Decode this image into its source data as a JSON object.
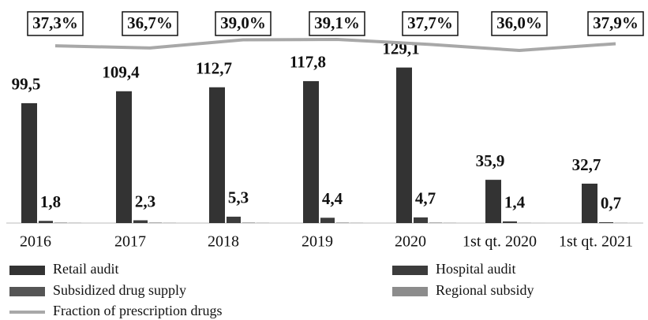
{
  "chart_data": {
    "type": "bar",
    "categories": [
      "2016",
      "2017",
      "2018",
      "2019",
      "2020",
      "1st qt. 2020",
      "1st qt. 2021"
    ],
    "ylim": [
      0,
      140
    ],
    "y2lim": [
      30,
      45
    ],
    "series": [
      {
        "name": "Retail audit",
        "color": "#333333",
        "values": [
          99.5,
          109.4,
          112.7,
          117.8,
          129.1,
          35.9,
          32.7
        ],
        "value_labels": [
          "99,5",
          "109,4",
          "112,7",
          "117,8",
          "129,1",
          "35,9",
          "32,7"
        ]
      },
      {
        "name": "Hospital audit",
        "color": "#3c3c3c",
        "values": [
          1.8,
          2.3,
          5.3,
          4.4,
          4.7,
          1.4,
          0.7
        ],
        "value_labels": [
          "1,8",
          "2,3",
          "5,3",
          "4,4",
          "4,7",
          "1,4",
          "0,7"
        ]
      },
      {
        "name": "Subsidized drug supply",
        "color": "#555555",
        "values": [
          0.3,
          0.3,
          0.3,
          0.3,
          0.3,
          0.1,
          0.1
        ]
      },
      {
        "name": "Regional subsidy",
        "color": "#8c8c8c",
        "values": [
          0.2,
          0.2,
          0.2,
          0.2,
          0.2,
          0.05,
          0.05
        ]
      },
      {
        "name": "Fraction of prescription drugs",
        "type": "line",
        "axis": "y2",
        "color": "#a8a8a8",
        "values": [
          37.3,
          36.7,
          39.0,
          39.1,
          37.7,
          36.0,
          37.9
        ],
        "value_labels": [
          "37,3%",
          "36,7%",
          "39,0%",
          "39,1%",
          "37,7%",
          "36,0%",
          "37,9%"
        ]
      }
    ]
  }
}
